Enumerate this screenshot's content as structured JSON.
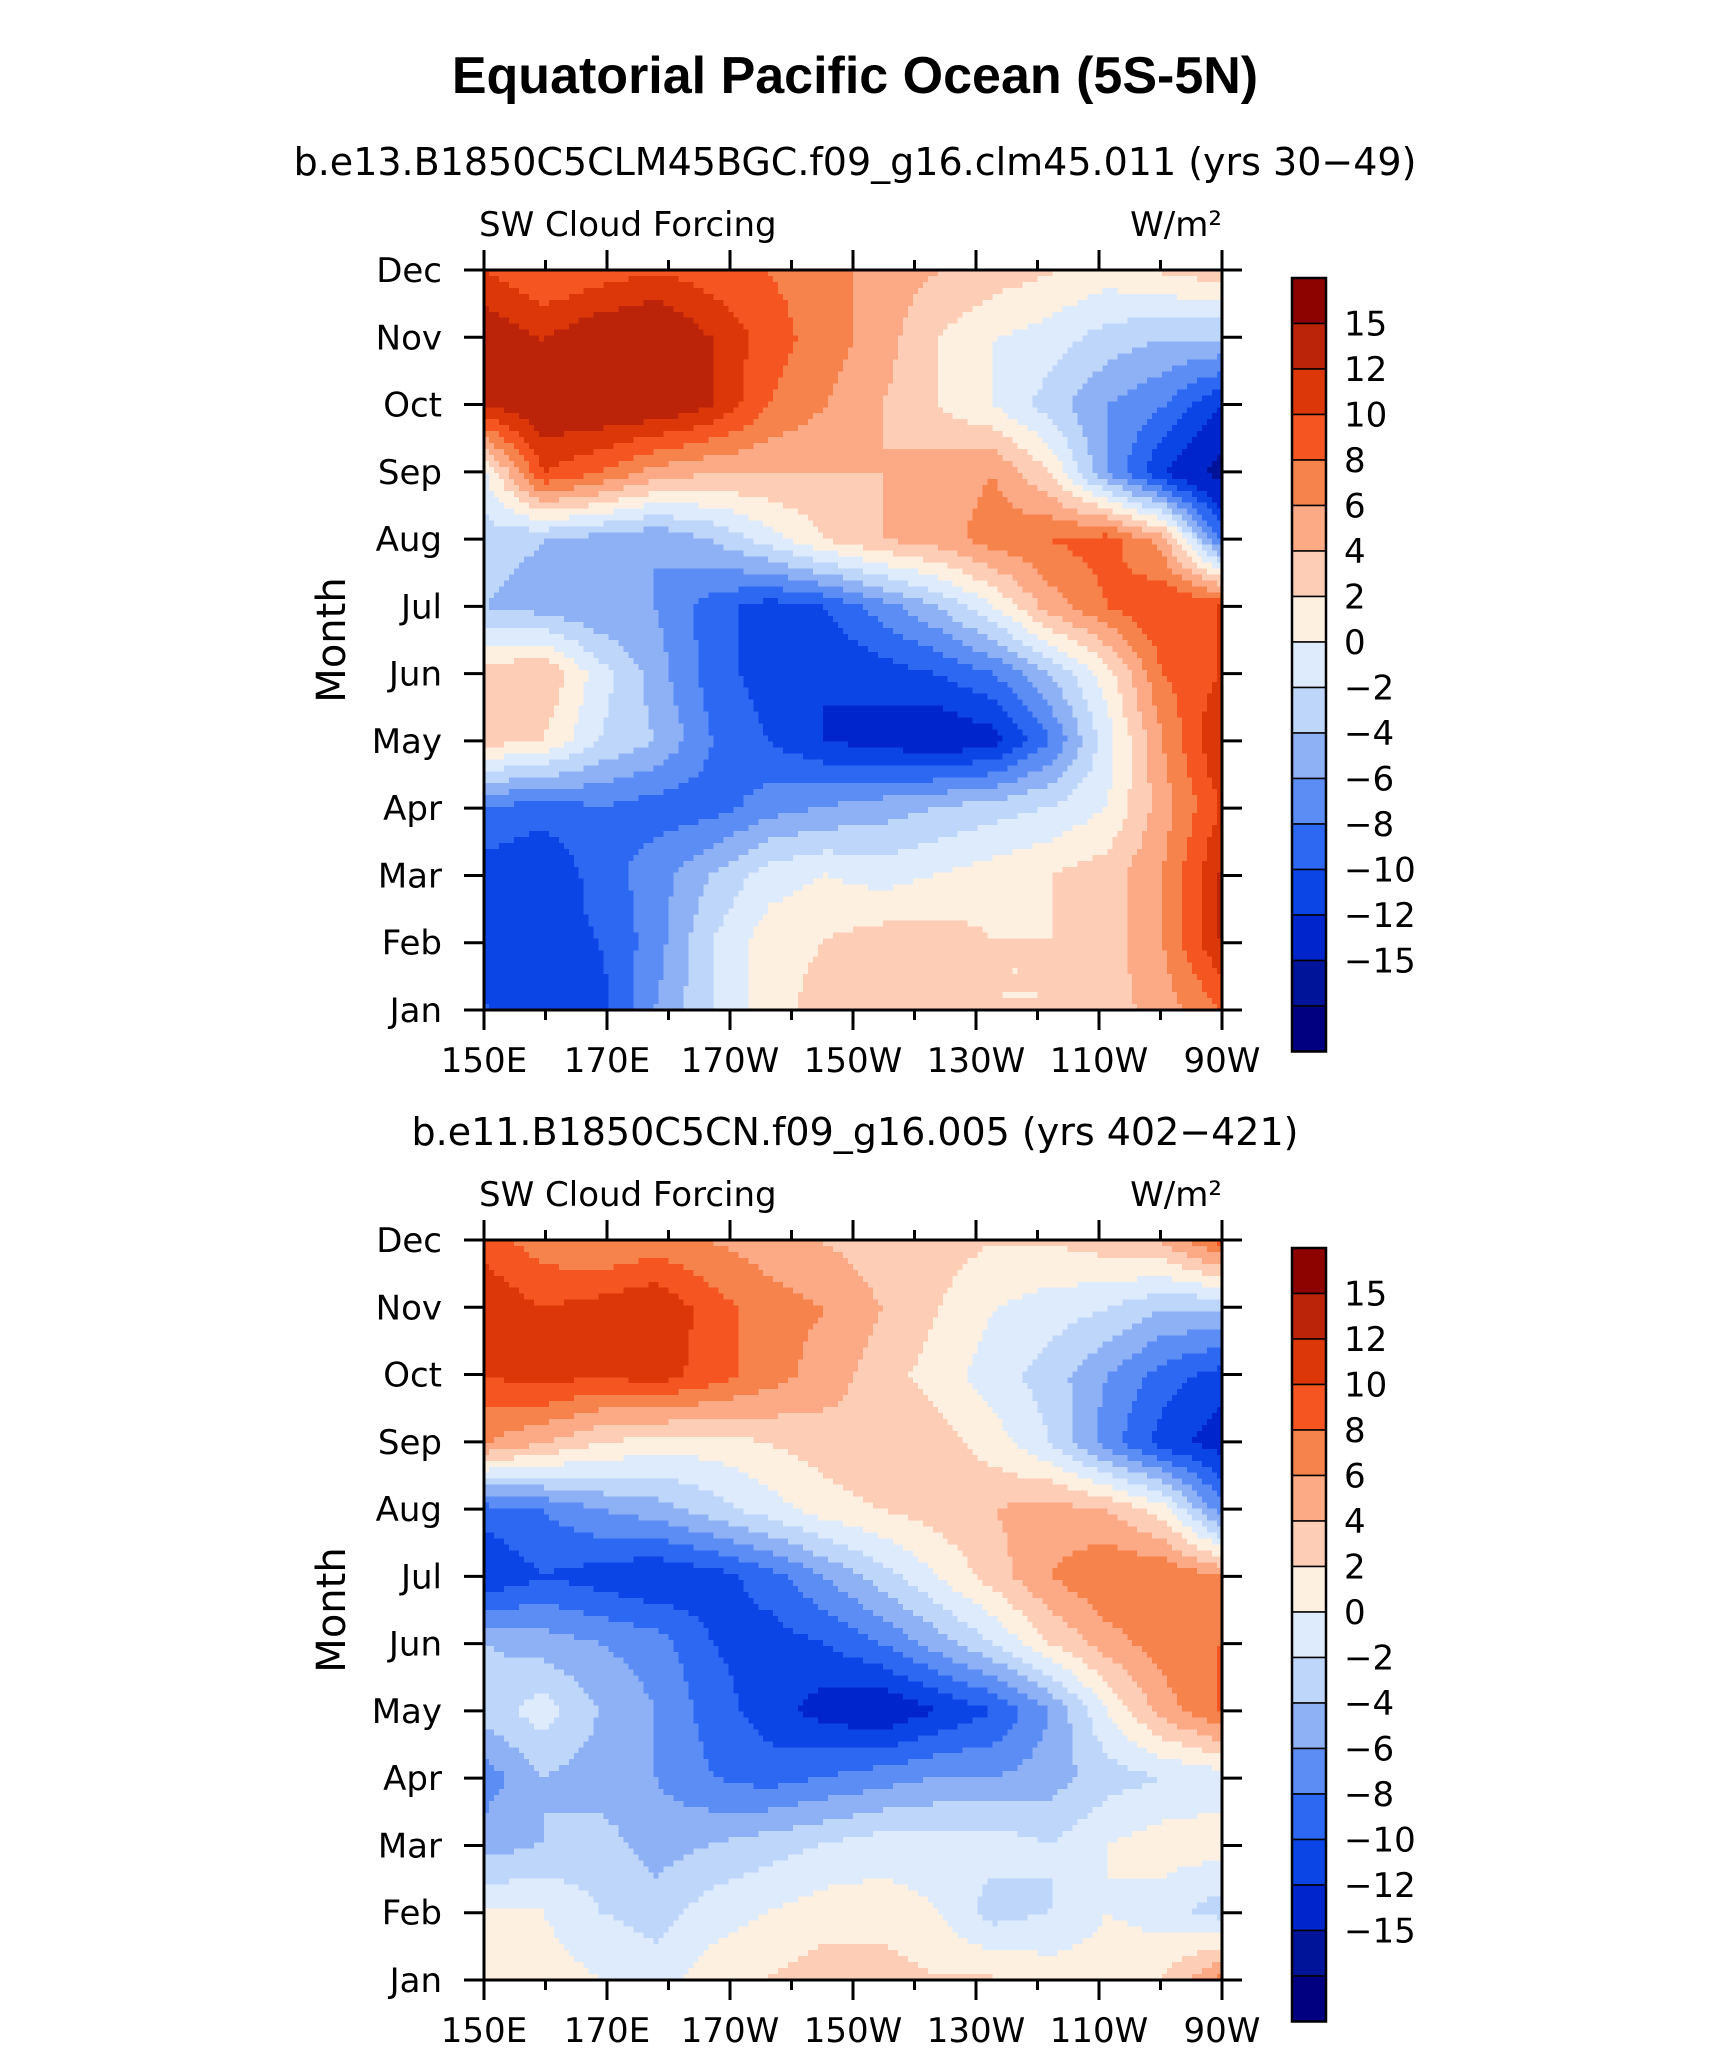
{
  "title": "Equatorial Pacific Ocean (5S-5N)",
  "chart_data": [
    {
      "type": "heatmap",
      "subtitle": "b.e13.B1850C5CLM45BGC.f09_g16.clm45.011 (yrs 30−49)",
      "left_label": "SW Cloud Forcing",
      "right_label": "W/m²",
      "ylabel": "Month",
      "x_ticks": [
        "150E",
        "170E",
        "170W",
        "150W",
        "130W",
        "110W",
        "90W"
      ],
      "y_ticks": [
        "Jan",
        "Feb",
        "Mar",
        "Apr",
        "May",
        "Jun",
        "Jul",
        "Aug",
        "Sep",
        "Oct",
        "Nov",
        "Dec"
      ],
      "x_range": [
        "150E",
        "90W"
      ],
      "grid": false,
      "legend": "right (colorbar)",
      "colorbar_labels": [
        "15",
        "12",
        "10",
        "8",
        "6",
        "4",
        "2",
        "0",
        "−2",
        "−4",
        "−6",
        "−8",
        "−10",
        "−12",
        "−15"
      ],
      "values": [
        [
          -10,
          -12,
          -11,
          -6,
          -2,
          1,
          3,
          4,
          3,
          2,
          2,
          3,
          5,
          8
        ],
        [
          -11,
          -11,
          -10,
          -7,
          -2,
          1,
          2,
          3,
          3,
          2,
          2,
          3,
          6,
          12
        ],
        [
          -11,
          -12,
          -9,
          -7,
          -4,
          -1,
          0,
          -1,
          0,
          1,
          2,
          3,
          6,
          12
        ],
        [
          -8,
          -9,
          -8,
          -9,
          -9,
          -7,
          -6,
          -5,
          -4,
          -3,
          -2,
          0,
          5,
          10
        ],
        [
          3,
          2,
          -2,
          -4,
          -8,
          -10,
          -12,
          -13,
          -14,
          -13,
          -8,
          -1,
          6,
          12
        ],
        [
          3,
          4,
          -1,
          -5,
          -9,
          -11,
          -12,
          -11,
          -10,
          -8,
          -4,
          1,
          8,
          10
        ],
        [
          -4,
          -5,
          -6,
          -6,
          -9,
          -11,
          -10,
          -7,
          -4,
          0,
          5,
          8,
          10,
          10
        ],
        [
          -3,
          -4,
          -5,
          -6,
          -4,
          -1,
          2,
          4,
          5,
          7,
          8,
          9,
          5,
          -8
        ],
        [
          0,
          10,
          8,
          5,
          4,
          4,
          4,
          4,
          5,
          6,
          2,
          -6,
          -12,
          -16
        ],
        [
          12,
          14,
          14,
          14,
          12,
          8,
          6,
          4,
          2,
          0,
          -3,
          -6,
          -8,
          -12
        ],
        [
          14,
          12,
          14,
          15,
          12,
          9,
          7,
          5,
          2,
          0,
          -1,
          -3,
          -4,
          -4
        ],
        [
          10,
          8,
          9,
          10,
          9,
          8,
          7,
          5,
          4,
          3,
          2,
          1,
          2,
          3
        ]
      ]
    },
    {
      "type": "heatmap",
      "subtitle": "b.e11.B1850C5CN.f09_g16.005 (yrs 402−421)",
      "left_label": "SW Cloud Forcing",
      "right_label": "W/m²",
      "ylabel": "Month",
      "x_ticks": [
        "150E",
        "170E",
        "170W",
        "150W",
        "130W",
        "110W",
        "90W"
      ],
      "y_ticks": [
        "Jan",
        "Feb",
        "Mar",
        "Apr",
        "May",
        "Jun",
        "Jul",
        "Aug",
        "Sep",
        "Oct",
        "Nov",
        "Dec"
      ],
      "x_range": [
        "150E",
        "90W"
      ],
      "grid": false,
      "legend": "right (colorbar)",
      "colorbar_labels": [
        "15",
        "12",
        "10",
        "8",
        "6",
        "4",
        "2",
        "0",
        "−2",
        "−4",
        "−6",
        "−8",
        "−10",
        "−12",
        "−15"
      ],
      "values": [
        [
          1,
          1,
          0,
          -1,
          1,
          2,
          3,
          3,
          2,
          2,
          1,
          1,
          2,
          6
        ],
        [
          0,
          0,
          -2,
          -3,
          -1,
          0,
          1,
          1,
          0,
          -3,
          -2,
          0,
          -1,
          -3
        ],
        [
          -5,
          -4,
          -3,
          -5,
          -4,
          -3,
          -2,
          -1,
          -1,
          -1,
          -2,
          0,
          1,
          1
        ],
        [
          -7,
          -4,
          -5,
          -6,
          -8,
          -9,
          -8,
          -7,
          -6,
          -6,
          -5,
          -3,
          -2,
          -1
        ],
        [
          -3,
          -1,
          -4,
          -6,
          -9,
          -11,
          -13,
          -14,
          -12,
          -10,
          -6,
          0,
          5,
          8
        ],
        [
          -4,
          -5,
          -6,
          -7,
          -10,
          -11,
          -10,
          -8,
          -5,
          -2,
          2,
          5,
          7,
          8
        ],
        [
          -12,
          -10,
          -11,
          -12,
          -11,
          -9,
          -6,
          -3,
          0,
          3,
          6,
          8,
          8,
          6
        ],
        [
          -9,
          -8,
          -6,
          -5,
          -3,
          -1,
          1,
          2,
          3,
          4,
          5,
          4,
          1,
          -7
        ],
        [
          6,
          4,
          2,
          1,
          1,
          2,
          3,
          4,
          3,
          1,
          -2,
          -7,
          -11,
          -13
        ],
        [
          10,
          11,
          10,
          11,
          9,
          7,
          5,
          3,
          1,
          -1,
          -3,
          -6,
          -9,
          -11
        ],
        [
          12,
          10,
          11,
          12,
          9,
          7,
          6,
          4,
          2,
          0,
          -1,
          -2,
          -4,
          -4
        ],
        [
          9,
          7,
          6,
          7,
          6,
          5,
          4,
          3,
          3,
          2,
          2,
          3,
          4,
          8
        ]
      ]
    }
  ],
  "colors": {
    "levels_low_to_high": [
      "#000080",
      "#001499",
      "#0025CC",
      "#0B45E6",
      "#2D68F2",
      "#5C8DF5",
      "#8EB1F5",
      "#BED6FA",
      "#DDEBFC",
      "#FEF0E0",
      "#FDCDB5",
      "#FCA986",
      "#F7834C",
      "#F55521",
      "#DB3708",
      "#BC240A",
      "#8C0300"
    ]
  }
}
